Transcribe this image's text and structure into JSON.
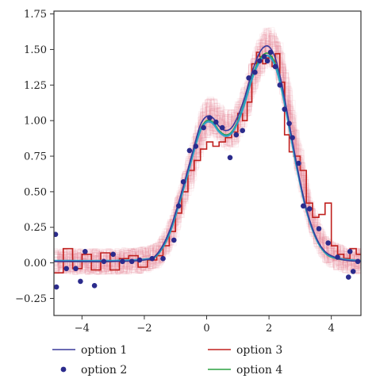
{
  "chart_data": {
    "type": "line",
    "title": "",
    "xlabel": "",
    "ylabel": "",
    "xlim": [
      -4.9,
      4.95
    ],
    "ylim": [
      -0.37,
      1.77
    ],
    "x_ticks": [
      -4,
      -2,
      0,
      2,
      4
    ],
    "x_tick_labels": [
      "−4",
      "−2",
      "0",
      "2",
      "4"
    ],
    "y_ticks": [
      -0.25,
      0,
      0.25,
      0.5,
      0.75,
      1.0,
      1.25,
      1.5,
      1.75
    ],
    "y_tick_labels": [
      "−0.25",
      "0.00",
      "0.25",
      "0.50",
      "0.75",
      "1.00",
      "1.25",
      "1.50",
      "1.75"
    ],
    "grid": false,
    "legend_position": "bottom",
    "background": "samples",
    "series": [
      {
        "name": "option 1",
        "kind": "line",
        "color": "#3a3a9a",
        "x": [
          -4.9,
          -3,
          -2,
          -1.6,
          -1.2,
          -0.8,
          -0.4,
          -0.2,
          0,
          0.2,
          0.4,
          0.6,
          0.8,
          1.0,
          1.2,
          1.4,
          1.6,
          1.8,
          2.0,
          2.2,
          2.4,
          2.6,
          2.8,
          3.0,
          3.2,
          3.4,
          3.6,
          3.8,
          4.0,
          4.4,
          4.95
        ],
        "y": [
          0.01,
          0.01,
          0.02,
          0.06,
          0.22,
          0.5,
          0.82,
          0.97,
          1.03,
          1.02,
          0.96,
          0.93,
          0.95,
          1.03,
          1.15,
          1.3,
          1.43,
          1.51,
          1.52,
          1.44,
          1.27,
          1.04,
          0.8,
          0.57,
          0.38,
          0.24,
          0.14,
          0.08,
          0.05,
          0.02,
          0.01
        ]
      },
      {
        "name": "option 2",
        "kind": "scatter",
        "color": "#2b2b8c",
        "x": [
          -4.85,
          -4.82,
          -4.5,
          -4.2,
          -4.05,
          -3.9,
          -3.6,
          -3.3,
          -3.0,
          -2.7,
          -2.4,
          -2.15,
          -1.75,
          -1.4,
          -1.05,
          -0.9,
          -0.75,
          -0.55,
          -0.35,
          -0.1,
          0.1,
          0.3,
          0.5,
          0.75,
          0.95,
          1.15,
          1.35,
          1.55,
          1.7,
          1.85,
          1.95,
          2.05,
          2.2,
          2.35,
          2.5,
          2.65,
          2.75,
          2.95,
          3.1,
          3.3,
          3.6,
          3.9,
          4.2,
          4.55,
          4.6,
          4.7,
          4.85
        ],
        "y": [
          0.2,
          -0.17,
          -0.04,
          -0.04,
          -0.13,
          0.08,
          -0.16,
          0.01,
          0.06,
          0.01,
          0.01,
          0.02,
          0.03,
          0.03,
          0.16,
          0.4,
          0.57,
          0.79,
          0.82,
          0.95,
          1.02,
          0.99,
          0.95,
          0.74,
          0.9,
          0.93,
          1.3,
          1.34,
          1.42,
          1.45,
          1.42,
          1.48,
          1.38,
          1.25,
          1.08,
          0.98,
          0.88,
          0.7,
          0.4,
          0.38,
          0.24,
          0.14,
          0.04,
          -0.1,
          0.08,
          -0.06,
          0.01
        ]
      },
      {
        "name": "option 3",
        "kind": "step",
        "color": "#c0201e",
        "x": [
          -4.9,
          -4.6,
          -4.3,
          -4.0,
          -3.7,
          -3.4,
          -3.1,
          -2.8,
          -2.5,
          -2.2,
          -1.9,
          -1.6,
          -1.4,
          -1.2,
          -1.0,
          -0.8,
          -0.6,
          -0.4,
          -0.2,
          0.0,
          0.2,
          0.4,
          0.6,
          0.8,
          1.0,
          1.15,
          1.3,
          1.45,
          1.6,
          1.7,
          1.8,
          1.9,
          2.0,
          2.1,
          2.2,
          2.35,
          2.5,
          2.65,
          2.8,
          3.0,
          3.2,
          3.4,
          3.6,
          3.8,
          4.0,
          4.2,
          4.4,
          4.6,
          4.8
        ],
        "y": [
          -0.07,
          0.1,
          -0.04,
          0.06,
          -0.05,
          0.07,
          -0.05,
          0.03,
          0.05,
          -0.03,
          0.02,
          0.05,
          0.12,
          0.22,
          0.35,
          0.5,
          0.65,
          0.72,
          0.8,
          0.85,
          0.82,
          0.85,
          0.88,
          0.92,
          1.05,
          1.0,
          1.13,
          1.4,
          1.48,
          1.45,
          1.4,
          1.44,
          1.45,
          1.38,
          1.47,
          1.27,
          0.9,
          0.78,
          0.75,
          0.65,
          0.42,
          0.32,
          0.34,
          0.42,
          0.12,
          0.06,
          0.03,
          0.1,
          0.06
        ]
      },
      {
        "name": "option 4",
        "kind": "line",
        "color": "#2aa040",
        "x": [
          -4.9,
          -3,
          -2,
          -1.6,
          -1.2,
          -0.8,
          -0.4,
          -0.2,
          0,
          0.2,
          0.4,
          0.6,
          0.8,
          1.0,
          1.2,
          1.4,
          1.6,
          1.8,
          2.0,
          2.2,
          2.4,
          2.6,
          2.8,
          3.0,
          3.2,
          3.4,
          3.6,
          3.8,
          4.0,
          4.4,
          4.95
        ],
        "y": [
          0.01,
          0.01,
          0.02,
          0.05,
          0.2,
          0.48,
          0.8,
          0.94,
          1.0,
          0.99,
          0.93,
          0.9,
          0.92,
          1.0,
          1.12,
          1.27,
          1.39,
          1.46,
          1.47,
          1.4,
          1.24,
          1.02,
          0.78,
          0.56,
          0.37,
          0.23,
          0.13,
          0.07,
          0.04,
          0.02,
          0.01
        ]
      }
    ],
    "cyan_curve_color": "#20a0c8",
    "sample_color": "#e07088"
  }
}
